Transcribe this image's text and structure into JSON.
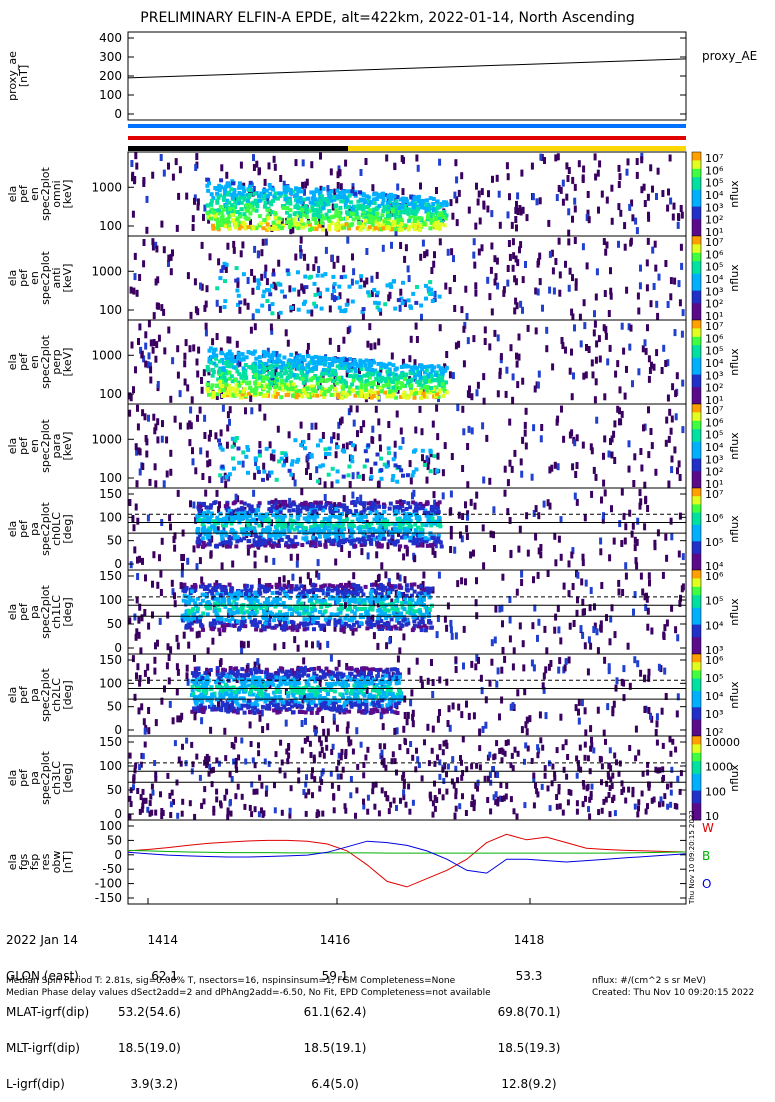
{
  "title": "PRELIMINARY ELFIN-A EPDE, alt=422km, 2022-01-14, North Ascending",
  "panels": [
    {
      "ylabel": [
        "proxy_ae",
        "[nT]"
      ],
      "ticks": [
        "400",
        "300",
        "200",
        "100",
        "0"
      ],
      "right": "proxy_AE"
    },
    {
      "ylabel": [
        "ela",
        "pef",
        "en",
        "spec2plot",
        "omni",
        "[keV]"
      ],
      "ticks": [
        "1000",
        "100"
      ],
      "bar": [
        "10⁷",
        "10⁶",
        "10⁵",
        "10⁴",
        "10³",
        "10²",
        "10¹"
      ],
      "unit": "nflux"
    },
    {
      "ylabel": [
        "ela",
        "pef",
        "en",
        "spec2plot",
        "anti",
        "[keV]"
      ],
      "ticks": [
        "1000",
        "100"
      ],
      "bar": [
        "10⁷",
        "10⁶",
        "10⁵",
        "10⁴",
        "10³",
        "10²",
        "10¹"
      ],
      "unit": "nflux"
    },
    {
      "ylabel": [
        "ela",
        "pef",
        "en",
        "spec2plot",
        "perp",
        "[keV]"
      ],
      "ticks": [
        "1000",
        "100"
      ],
      "bar": [
        "10⁷",
        "10⁶",
        "10⁵",
        "10⁴",
        "10³",
        "10²",
        "10¹"
      ],
      "unit": "nflux"
    },
    {
      "ylabel": [
        "ela",
        "pef",
        "en",
        "spec2plot",
        "para",
        "[keV]"
      ],
      "ticks": [
        "1000",
        "100"
      ],
      "bar": [
        "10⁷",
        "10⁶",
        "10⁵",
        "10⁴",
        "10³",
        "10²",
        "10¹"
      ],
      "unit": "nflux"
    },
    {
      "ylabel": [
        "ela",
        "pef",
        "pa",
        "spec2plot",
        "ch0LC",
        "[deg]"
      ],
      "ticks": [
        "150",
        "100",
        "50",
        "0"
      ],
      "bar": [
        "10⁷",
        "10⁶",
        "10⁵",
        "10⁴"
      ],
      "unit": "nflux"
    },
    {
      "ylabel": [
        "ela",
        "pef",
        "pa",
        "spec2plot",
        "ch1LC",
        "[deg]"
      ],
      "ticks": [
        "150",
        "100",
        "50",
        "0"
      ],
      "bar": [
        "10⁶",
        "10⁵",
        "10⁴",
        "10³"
      ],
      "unit": "nflux"
    },
    {
      "ylabel": [
        "ela",
        "pef",
        "pa",
        "spec2plot",
        "ch2LC",
        "[deg]"
      ],
      "ticks": [
        "150",
        "100",
        "50",
        "0"
      ],
      "bar": [
        "10⁶",
        "10⁵",
        "10⁴",
        "10³",
        "10²"
      ],
      "unit": "nflux"
    },
    {
      "ylabel": [
        "ela",
        "pef",
        "pa",
        "spec2plot",
        "ch3LC",
        "[deg]"
      ],
      "ticks": [
        "150",
        "100",
        "50",
        "0"
      ],
      "bar": [
        "10000",
        "1000",
        "100",
        "10"
      ],
      "unit": "nflux"
    },
    {
      "ylabel": [
        "ela",
        "fgs",
        "fsp",
        "res",
        "obw",
        "[nT]"
      ],
      "ticks": [
        "100",
        "50",
        "0",
        "-50",
        "-100",
        "-150"
      ],
      "legend": [
        "W",
        "B",
        "O"
      ]
    }
  ],
  "chart_data": {
    "type": "line",
    "x_ticks": [
      "1414",
      "1416",
      "1418"
    ],
    "proxy_ae": {
      "x": [
        0,
        1
      ],
      "y": [
        190,
        290
      ],
      "ylim": [
        0,
        400
      ]
    },
    "fgs_res": {
      "ylim": [
        -160,
        100
      ],
      "series": [
        {
          "name": "W",
          "color": "#e00000",
          "y": [
            10,
            15,
            22,
            30,
            37,
            42,
            46,
            48,
            48,
            45,
            35,
            10,
            -40,
            -100,
            -120,
            -90,
            -60,
            -20,
            40,
            70,
            50,
            60,
            40,
            20,
            15,
            12,
            10,
            8,
            6
          ]
        },
        {
          "name": "B",
          "color": "#00b000",
          "y": [
            12,
            10,
            8,
            6,
            5,
            4,
            4,
            4,
            3,
            3,
            3,
            3,
            3,
            2,
            2,
            2,
            2,
            2,
            2,
            2,
            2,
            2,
            2,
            2,
            2,
            3,
            4,
            5,
            6
          ]
        },
        {
          "name": "O",
          "color": "#0000e0",
          "y": [
            5,
            0,
            -5,
            -8,
            -10,
            -12,
            -12,
            -10,
            -8,
            -5,
            5,
            25,
            45,
            40,
            30,
            10,
            -20,
            -60,
            -70,
            -20,
            -20,
            -25,
            -30,
            -25,
            -20,
            -15,
            -10,
            -5,
            0
          ]
        }
      ]
    }
  },
  "footer": {
    "labels": [
      "2022 Jan 14",
      "GLON (east)",
      "MLAT-igrf(dip)",
      "MLT-igrf(dip)",
      "L-igrf(dip)"
    ],
    "col1": [
      "1414",
      "62.1",
      "53.2(54.6)",
      "18.5(19.0)",
      "3.9(3.2)"
    ],
    "col2": [
      "1416",
      "59.1",
      "61.1(62.4)",
      "18.5(19.1)",
      "6.4(5.0)"
    ],
    "col3": [
      "1418",
      "53.3",
      "69.8(70.1)",
      "18.5(19.3)",
      "12.8(9.2)"
    ],
    "line1": "Median Spin Period T: 2.81s, sig=0.00% T, nsectors=16, nspinsinsum=1, FGM Completeness=None",
    "line2": "Median Phase delay values dSect2add=2 and dPhAng2add=-6.50, No Fit, EPD Completeness=not available",
    "units": "nflux: #/(cm^2 s sr MeV)",
    "created": "Created: Thu Nov 10 09:20:15 2022",
    "side_stamp": "Thu Nov 10 09:20:15 2022"
  }
}
